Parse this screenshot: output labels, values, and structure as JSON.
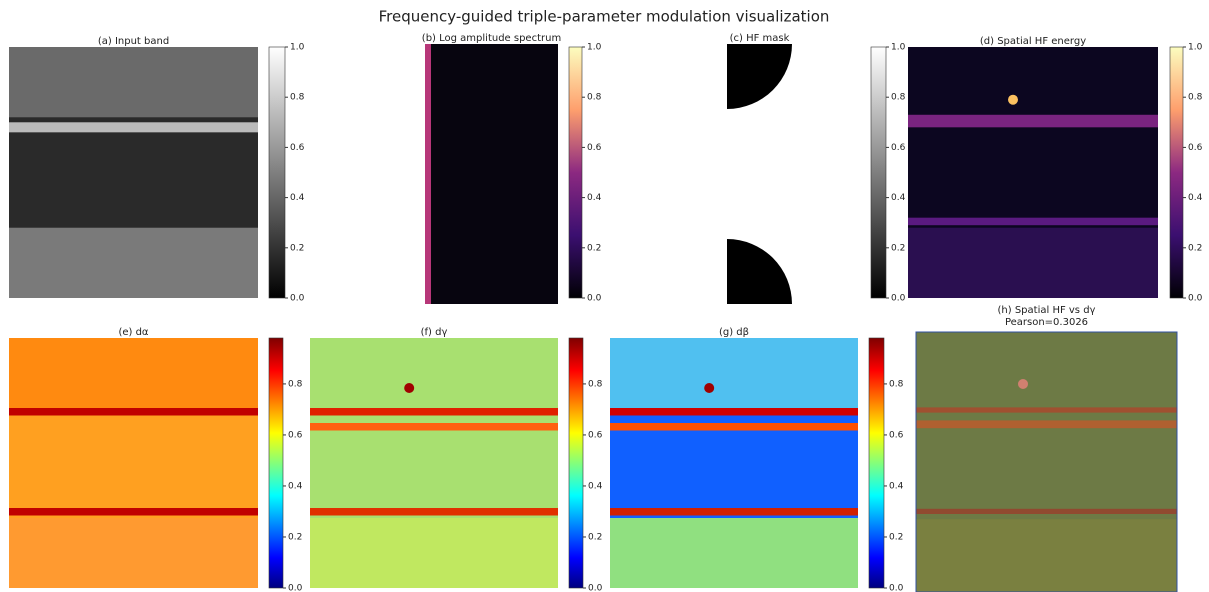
{
  "title": "Frequency-guided triple-parameter modulation visualization",
  "chart_data": [
    {
      "type": "heatmap",
      "title": "(a) Input band",
      "colormap": "gray",
      "ylim": [
        0,
        1
      ],
      "yticks": [
        {
          "value": 0,
          "label": "0.0"
        },
        0.2,
        0.4,
        0.6,
        0.8,
        {
          "value": 1,
          "label": "1.0"
        }
      ]
    },
    {
      "type": "heatmap",
      "title": "(b) Log amplitude spectrum",
      "colormap": "magma",
      "ylim": [
        0,
        1
      ],
      "yticks": [
        {
          "value": 0,
          "label": "0.0"
        },
        0.2,
        0.4,
        0.6,
        0.8,
        {
          "value": 1,
          "label": "1.0"
        }
      ]
    },
    {
      "type": "heatmap",
      "title": "(c) HF mask",
      "colormap": "gray",
      "ylim": [
        0,
        1
      ],
      "yticks": [
        {
          "value": 0,
          "label": "0.0"
        },
        0.2,
        0.4,
        0.6,
        0.8,
        {
          "value": 1,
          "label": "1.0"
        }
      ]
    },
    {
      "type": "heatmap",
      "title": "(d) Spatial HF energy",
      "colormap": "magma",
      "ylim": [
        0,
        1
      ],
      "yticks": [
        {
          "value": 0,
          "label": "0.0"
        },
        0.2,
        0.4,
        0.6,
        0.8,
        {
          "value": 1,
          "label": "1.0"
        }
      ]
    },
    {
      "type": "heatmap",
      "title": "(e) dα",
      "colormap": "jet",
      "ylim": [
        0,
        0.98
      ],
      "yticks": [
        {
          "value": 0,
          "label": "0.0"
        },
        0.2,
        0.4,
        0.6,
        0.8
      ]
    },
    {
      "type": "heatmap",
      "title": "(f) dγ",
      "colormap": "jet",
      "ylim": [
        0,
        0.98
      ],
      "yticks": [
        {
          "value": 0,
          "label": "0.0"
        },
        0.2,
        0.4,
        0.6,
        0.8
      ]
    },
    {
      "type": "heatmap",
      "title": "(g) dβ",
      "colormap": "jet",
      "ylim": [
        0,
        0.98
      ],
      "yticks": [
        {
          "value": 0,
          "label": "0.0"
        },
        0.2,
        0.4,
        0.6,
        0.8
      ]
    },
    {
      "type": "overlay",
      "title": "(h) Spatial HF vs dγ",
      "subtitle": "Pearson=0.3026"
    }
  ]
}
